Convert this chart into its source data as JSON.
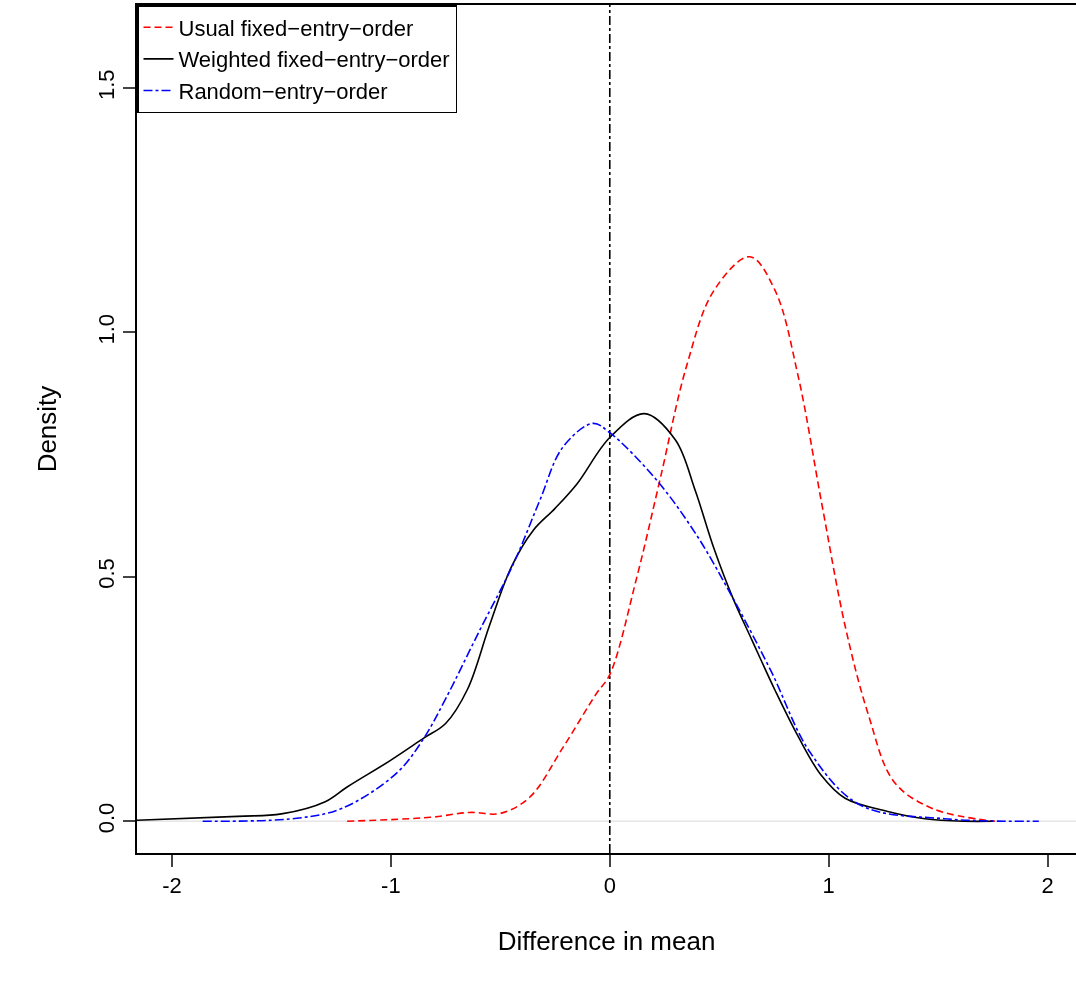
{
  "chart_data": {
    "type": "line",
    "xlabel": "Difference in mean",
    "ylabel": "Density",
    "xlim": [
      -2.16,
      2.13
    ],
    "ylim": [
      -0.065,
      1.67
    ],
    "xticks": [
      -2,
      -1,
      0,
      1,
      2
    ],
    "yticks": [
      {
        "value": 0,
        "label": "0.0"
      },
      {
        "value": 0.5,
        "label": "0.5"
      },
      {
        "value": 1,
        "label": "1.0"
      },
      {
        "value": 1.5,
        "label": "1.5"
      }
    ],
    "grid": false,
    "legend": "top left",
    "marker": "none",
    "ref_lines": [
      {
        "axis": "y",
        "value": 0,
        "color": "#e6e6e6",
        "line_style": "solid"
      },
      {
        "axis": "x",
        "value": 0,
        "color": "#000000",
        "line_style": "dashdot"
      }
    ],
    "series": [
      {
        "name": "Usual fixed−entry−order",
        "color": "#ff0000",
        "line_style": "dashed",
        "x": [
          -1.2,
          -0.82,
          -0.64,
          -0.5,
          -0.366,
          -0.215,
          -0.06,
          0,
          0.124,
          0.23,
          0.35,
          0.476,
          0.64,
          0.755,
          0.86,
          0.97,
          1.075,
          1.18,
          1.3,
          1.48,
          1.76
        ],
        "values": [
          0,
          0.008,
          0.018,
          0.016,
          0.049,
          0.15,
          0.262,
          0.3,
          0.5,
          0.7,
          0.93,
          1.086,
          1.155,
          1.086,
          0.912,
          0.646,
          0.4,
          0.22,
          0.08,
          0.025,
          0
        ]
      },
      {
        "name": "Weighted fixed−entry−order",
        "color": "#000000",
        "line_style": "solid",
        "x": [
          -2.16,
          -1.7,
          -1.5,
          -1.3,
          -1.2,
          -1.0,
          -0.85,
          -0.75,
          -0.65,
          -0.55,
          -0.45,
          -0.35,
          -0.25,
          -0.15,
          0,
          0.158,
          0.3,
          0.39,
          0.476,
          0.563,
          0.65,
          0.755,
          0.86,
          0.966,
          1.075,
          1.27,
          1.44,
          1.62,
          1.75
        ],
        "values": [
          0.002,
          0.01,
          0.015,
          0.04,
          0.07,
          0.125,
          0.17,
          0.2,
          0.27,
          0.4,
          0.52,
          0.595,
          0.64,
          0.69,
          0.785,
          0.834,
          0.78,
          0.677,
          0.558,
          0.456,
          0.37,
          0.268,
          0.174,
          0.094,
          0.047,
          0.02,
          0.005,
          0,
          0
        ]
      },
      {
        "name": "Random−entry−order",
        "color": "#0000ff",
        "line_style": "dashdot",
        "x": [
          -1.86,
          -1.43,
          -1.22,
          -0.975,
          -0.855,
          -0.746,
          -0.595,
          -0.44,
          -0.32,
          -0.215,
          -0.078,
          0,
          0.21,
          0.39,
          0.563,
          0.737,
          0.915,
          1.144,
          1.53,
          1.96
        ],
        "values": [
          0,
          0.006,
          0.027,
          0.098,
          0.166,
          0.254,
          0.39,
          0.527,
          0.656,
          0.765,
          0.814,
          0.795,
          0.7,
          0.59,
          0.456,
          0.307,
          0.141,
          0.033,
          0.005,
          0
        ]
      }
    ]
  }
}
